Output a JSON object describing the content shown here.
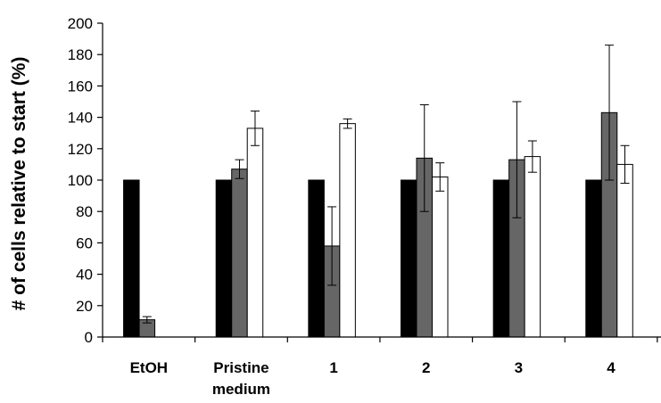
{
  "chart_data": {
    "type": "bar",
    "title": "",
    "xlabel": "",
    "ylabel": "# of cells relative to start (%)",
    "ylim": [
      0,
      200
    ],
    "yticks": [
      0,
      20,
      40,
      60,
      80,
      100,
      120,
      140,
      160,
      180,
      200
    ],
    "grid": false,
    "legend": "none",
    "categories": [
      [
        "EtOH"
      ],
      [
        "Pristine",
        "medium"
      ],
      [
        "1"
      ],
      [
        "2"
      ],
      [
        "3"
      ],
      [
        "4"
      ]
    ],
    "series": [
      {
        "color": "#000000",
        "values": [
          100,
          100,
          100,
          100,
          100,
          100
        ],
        "errors": [
          0,
          0,
          0,
          0,
          0,
          0
        ]
      },
      {
        "color": "#666666",
        "values": [
          11,
          107,
          58,
          114,
          113,
          143
        ],
        "errors": [
          2,
          6,
          25,
          34,
          37,
          43
        ]
      },
      {
        "color": "#ffffff",
        "values": [
          null,
          133,
          136,
          102,
          115,
          110
        ],
        "errors": [
          0,
          11,
          3,
          9,
          10,
          12
        ]
      }
    ]
  }
}
